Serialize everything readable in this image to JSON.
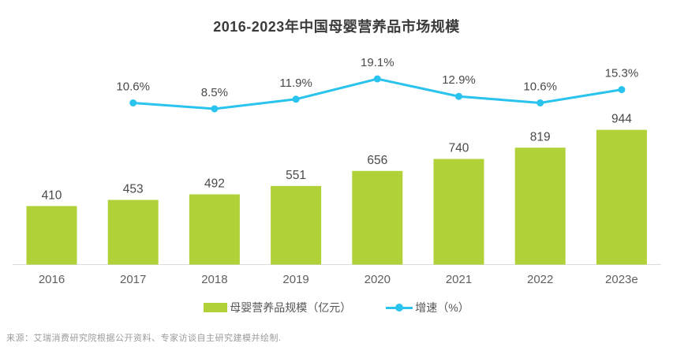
{
  "chart_data": {
    "type": "bar",
    "title": "2016-2023年中国母婴营养品市场规模",
    "categories": [
      "2016",
      "2017",
      "2018",
      "2019",
      "2020",
      "2021",
      "2022",
      "2023e"
    ],
    "series": [
      {
        "name": "母婴营养品规模（亿元）",
        "type": "bar",
        "values": [
          410,
          453,
          492,
          551,
          656,
          740,
          819,
          944
        ],
        "color": "#b1d138",
        "label_format": "{v}"
      },
      {
        "name": "增速（%）",
        "type": "line",
        "values": [
          null,
          10.6,
          8.5,
          11.9,
          19.1,
          12.9,
          10.6,
          15.3
        ],
        "color": "#29c3ee",
        "label_format": "{v}%"
      }
    ],
    "legend": [
      {
        "label": "母婴营养品规模（亿元）",
        "marker": "square",
        "color": "#b1d138"
      },
      {
        "label": "增速（%）",
        "marker": "line-dot",
        "color": "#29c3ee"
      }
    ],
    "layout_hints": {
      "gridlines": false,
      "y_axis_visible": false,
      "x_axis_line_color": "#dcdcdc",
      "legend_position": "bottom",
      "bar_value_labels": true,
      "line_value_labels": true
    }
  },
  "text_colors": {
    "title": "#3b3b3b",
    "value_label": "#4a4a4a",
    "tick_label": "#5f5f5f",
    "source": "#9b9b9b"
  },
  "source_note": "来源：艾瑞消费研究院根据公开资料、专家访谈自主研究建模并绘制."
}
